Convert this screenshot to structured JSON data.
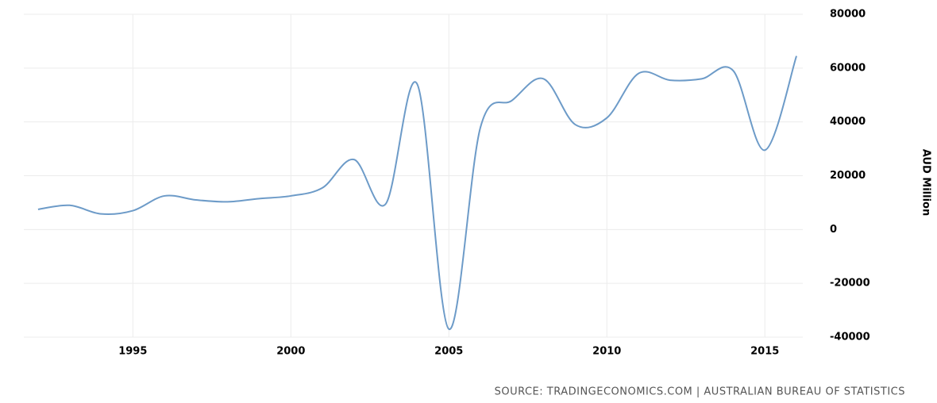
{
  "chart_data": {
    "type": "line",
    "y_label": "AUD Million",
    "source": "SOURCE: TRADINGECONOMICS.COM | AUSTRALIAN BUREAU OF STATISTICS",
    "x": [
      1992,
      1993,
      1994,
      1995,
      1996,
      1997,
      1998,
      1999,
      2000,
      2001,
      2002,
      2003,
      2004,
      2005,
      2006,
      2007,
      2008,
      2009,
      2010,
      2011,
      2012,
      2013,
      2014,
      2015,
      2016
    ],
    "series": [
      {
        "color": "#6d9bc8",
        "values": [
          7500,
          9000,
          5800,
          7000,
          12500,
          11000,
          10300,
          11500,
          12500,
          15500,
          26000,
          9500,
          54000,
          -37000,
          38000,
          48000,
          56000,
          39000,
          41500,
          58000,
          55500,
          56000,
          59000,
          29500,
          64500
        ]
      }
    ],
    "xlim": [
      1991.55,
      2016.2
    ],
    "ylim": [
      -40000,
      80000
    ],
    "xticks": [
      1995,
      2000,
      2005,
      2010,
      2015
    ],
    "yticks": [
      -40000,
      -20000,
      0,
      20000,
      40000,
      60000,
      80000
    ],
    "grid": true
  }
}
